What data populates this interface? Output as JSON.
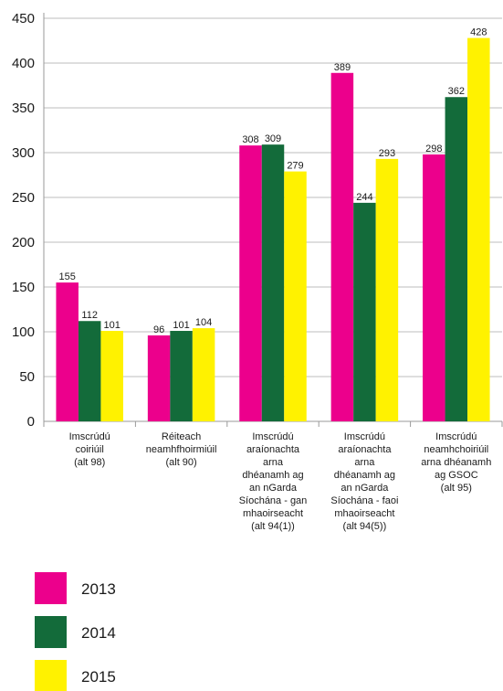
{
  "chart_data": {
    "type": "bar",
    "categories": [
      [
        "Imscrúdú",
        "coiriúil",
        "(alt 98)"
      ],
      [
        "Réiteach",
        "neamhfhoirmiúil",
        "(alt 90)"
      ],
      [
        "Imscrúdú",
        "araíonachta",
        "arna",
        "dhéanamh ag",
        "an nGarda",
        "Síochána - gan",
        "mhaoirseacht",
        "(alt 94(1))"
      ],
      [
        "Imscrúdú",
        "araíonachta",
        "arna",
        "dhéanamh ag",
        "an nGarda",
        "Síochána - faoi",
        "mhaoirseacht",
        "(alt 94(5))"
      ],
      [
        "Imscrúdú",
        "neamhchoiriúil",
        "arna dhéanamh",
        "ag GSOC",
        "(alt 95)"
      ]
    ],
    "series": [
      {
        "name": "2013",
        "color": "#ec008c",
        "values": [
          155,
          96,
          308,
          389,
          298
        ]
      },
      {
        "name": "2014",
        "color": "#136b3a",
        "values": [
          112,
          101,
          309,
          244,
          362
        ]
      },
      {
        "name": "2015",
        "color": "#fff200",
        "values": [
          101,
          104,
          279,
          293,
          428
        ]
      }
    ],
    "yticks": [
      0,
      50,
      100,
      150,
      200,
      250,
      300,
      350,
      400,
      450
    ],
    "ylim": [
      0,
      450
    ],
    "grid": true,
    "legend_position": "bottom-left"
  }
}
